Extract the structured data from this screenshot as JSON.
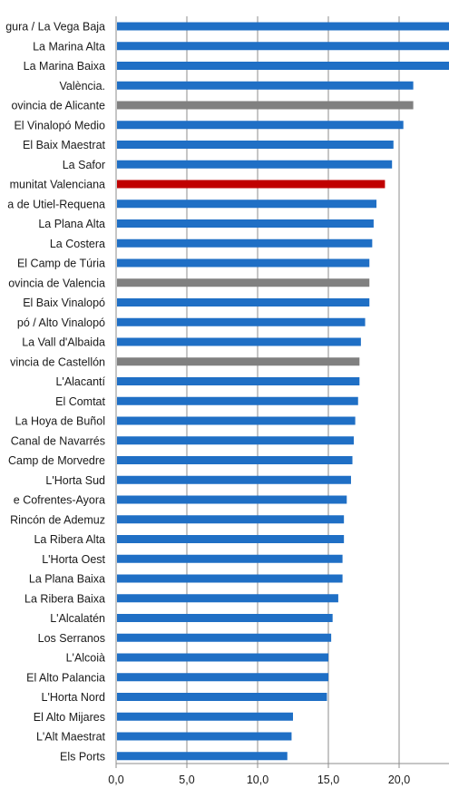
{
  "chart_data": {
    "type": "bar",
    "orientation": "horizontal",
    "title": "",
    "xlabel": "",
    "ylabel": "",
    "xlim": [
      0,
      23.5
    ],
    "xticks": [
      0,
      5,
      10,
      15,
      20
    ],
    "xtick_labels": [
      "0,0",
      "5,0",
      "10,0",
      "15,0",
      "20,0"
    ],
    "grid": "vertical",
    "legend": "none",
    "colors": {
      "default": "#1f6fc5",
      "province": "#808080",
      "region": "#c00000"
    },
    "categories": [
      "gura / La Vega Baja",
      "La Marina Alta",
      "La Marina Baixa",
      "València.",
      "ovincia de Alicante",
      "El Vinalopó Medio",
      "El Baix Maestrat",
      "La Safor",
      "munitat Valenciana",
      "a de Utiel-Requena",
      "La Plana Alta",
      "La Costera",
      "El Camp de Túria",
      "ovincia de Valencia",
      "El Baix Vinalopó",
      "pó / Alto Vinalopó",
      "La Vall d'Albaida",
      "vincia de Castellón",
      "L'Alacantí",
      "El Comtat",
      "La Hoya de Buñol",
      "Canal de Navarrés",
      "Camp de Morvedre",
      "L'Horta Sud",
      "e Cofrentes-Ayora",
      "Rincón de Ademuz",
      "La Ribera Alta",
      "L'Horta Oest",
      "La Plana Baixa",
      "La Ribera Baixa",
      "L'Alcalatén",
      "Los Serranos",
      "L'Alcoià",
      "El Alto Palancia",
      "L'Horta Nord",
      "El Alto Mijares",
      "L'Alt Maestrat",
      "Els Ports"
    ],
    "values": [
      23.6,
      23.6,
      23.6,
      21.0,
      21.0,
      20.3,
      19.6,
      19.5,
      19.0,
      18.4,
      18.2,
      18.1,
      17.9,
      17.9,
      17.9,
      17.6,
      17.3,
      17.2,
      17.2,
      17.1,
      16.9,
      16.8,
      16.7,
      16.6,
      16.3,
      16.1,
      16.1,
      16.0,
      16.0,
      15.7,
      15.3,
      15.2,
      15.0,
      15.0,
      14.9,
      12.5,
      12.4,
      12.1
    ],
    "bar_kinds": [
      "default",
      "default",
      "default",
      "default",
      "province",
      "default",
      "default",
      "default",
      "region",
      "default",
      "default",
      "default",
      "default",
      "province",
      "default",
      "default",
      "default",
      "province",
      "default",
      "default",
      "default",
      "default",
      "default",
      "default",
      "default",
      "default",
      "default",
      "default",
      "default",
      "default",
      "default",
      "default",
      "default",
      "default",
      "default",
      "default",
      "default",
      "default"
    ]
  }
}
